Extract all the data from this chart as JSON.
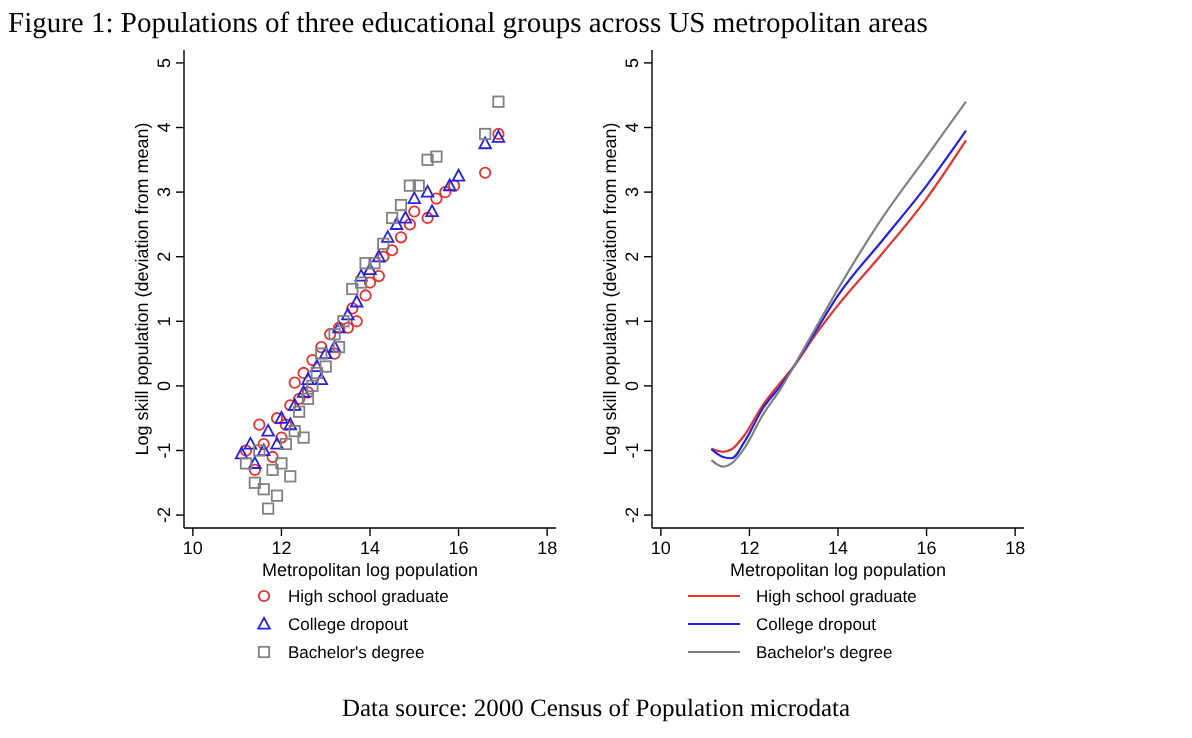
{
  "chart_data": [
    {
      "type": "scatter",
      "title": "Figure 1: Populations of three educational groups across US metropolitan areas",
      "xlabel": "Metropolitan log population",
      "ylabel": "Log skill population (deviation from mean)",
      "xlim": [
        9.8,
        18.2
      ],
      "xticks": [
        10,
        12,
        14,
        16,
        18
      ],
      "ylim": [
        -2.2,
        5.2
      ],
      "yticks": [
        -2,
        -1,
        0,
        1,
        2,
        3,
        4,
        5
      ],
      "legend": "bottom",
      "annotations": [
        "Data source: 2000 Census of Population microdata"
      ],
      "series": [
        {
          "name": "High school graduate",
          "color": "#e8302f",
          "marker": "circle",
          "x": [
            11.2,
            11.4,
            11.5,
            11.6,
            11.8,
            11.9,
            12.0,
            12.1,
            12.2,
            12.3,
            12.4,
            12.5,
            12.6,
            12.7,
            12.9,
            13.1,
            13.2,
            13.3,
            13.5,
            13.6,
            13.7,
            13.9,
            14.0,
            14.2,
            14.3,
            14.5,
            14.7,
            14.9,
            15.0,
            15.3,
            15.5,
            15.7,
            15.9,
            16.6,
            16.9
          ],
          "values": [
            -1.0,
            -1.3,
            -0.6,
            -0.9,
            -1.1,
            -0.5,
            -0.8,
            -0.6,
            -0.3,
            0.05,
            -0.2,
            0.2,
            -0.1,
            0.4,
            0.6,
            0.8,
            0.5,
            0.9,
            0.9,
            1.2,
            1.0,
            1.4,
            1.6,
            1.7,
            2.0,
            2.1,
            2.3,
            2.5,
            2.7,
            2.6,
            2.9,
            3.0,
            3.1,
            3.3,
            3.9
          ]
        },
        {
          "name": "College dropout",
          "color": "#2222e0",
          "marker": "triangle",
          "x": [
            11.1,
            11.3,
            11.4,
            11.6,
            11.7,
            11.9,
            12.0,
            12.2,
            12.3,
            12.5,
            12.6,
            12.8,
            12.9,
            13.0,
            13.2,
            13.3,
            13.5,
            13.7,
            13.8,
            14.0,
            14.2,
            14.4,
            14.6,
            14.8,
            15.0,
            15.3,
            15.4,
            15.8,
            16.0,
            16.6,
            16.9
          ],
          "values": [
            -1.05,
            -0.9,
            -1.2,
            -1.0,
            -0.7,
            -0.9,
            -0.5,
            -0.6,
            -0.3,
            -0.1,
            0.1,
            0.3,
            0.1,
            0.5,
            0.6,
            0.9,
            1.1,
            1.3,
            1.7,
            1.8,
            2.0,
            2.3,
            2.5,
            2.6,
            2.9,
            3.0,
            2.7,
            3.1,
            3.25,
            3.75,
            3.85
          ]
        },
        {
          "name": "Bachelor's degree",
          "color": "#808080",
          "marker": "square",
          "x": [
            11.2,
            11.4,
            11.5,
            11.6,
            11.7,
            11.8,
            11.9,
            12.0,
            12.1,
            12.2,
            12.3,
            12.4,
            12.5,
            12.6,
            12.7,
            12.8,
            12.9,
            13.0,
            13.2,
            13.3,
            13.4,
            13.6,
            13.8,
            13.9,
            14.1,
            14.3,
            14.5,
            14.7,
            14.9,
            15.1,
            15.3,
            15.5,
            16.6,
            16.9
          ],
          "values": [
            -1.2,
            -1.5,
            -1.0,
            -1.6,
            -1.9,
            -1.3,
            -1.7,
            -1.2,
            -0.9,
            -1.4,
            -0.7,
            -0.4,
            -0.8,
            -0.2,
            0.0,
            0.2,
            0.5,
            0.3,
            0.8,
            0.6,
            1.0,
            1.5,
            1.6,
            1.9,
            1.9,
            2.2,
            2.6,
            2.8,
            3.1,
            3.1,
            3.5,
            3.55,
            3.9,
            4.4
          ]
        }
      ]
    },
    {
      "type": "line",
      "xlabel": "Metropolitan log population",
      "ylabel": "Log skill population (deviation from mean)",
      "xlim": [
        9.8,
        18.2
      ],
      "xticks": [
        10,
        12,
        14,
        16,
        18
      ],
      "ylim": [
        -2.2,
        5.2
      ],
      "yticks": [
        -2,
        -1,
        0,
        1,
        2,
        3,
        4,
        5
      ],
      "legend": "bottom",
      "series": [
        {
          "name": "High school graduate",
          "color": "#e8302f",
          "x": [
            11.14,
            11.4,
            11.6,
            11.9,
            12.3,
            12.7,
            13.0,
            13.5,
            14.0,
            15.0,
            16.0,
            16.89
          ],
          "values": [
            -0.97,
            -1.02,
            -0.98,
            -0.75,
            -0.3,
            0.05,
            0.3,
            0.8,
            1.25,
            2.05,
            2.9,
            3.8
          ]
        },
        {
          "name": "College dropout",
          "color": "#2222e0",
          "x": [
            11.14,
            11.4,
            11.6,
            11.9,
            12.3,
            12.7,
            13.0,
            13.5,
            14.0,
            15.0,
            16.0,
            16.89
          ],
          "values": [
            -0.98,
            -1.1,
            -1.12,
            -0.85,
            -0.35,
            0.0,
            0.3,
            0.85,
            1.4,
            2.25,
            3.1,
            3.95
          ]
        },
        {
          "name": "Bachelor's degree",
          "color": "#808080",
          "x": [
            11.14,
            11.4,
            11.6,
            11.9,
            12.3,
            12.7,
            13.0,
            13.5,
            14.0,
            15.0,
            16.0,
            16.89
          ],
          "values": [
            -1.15,
            -1.25,
            -1.2,
            -0.95,
            -0.45,
            -0.05,
            0.3,
            0.9,
            1.5,
            2.6,
            3.55,
            4.4
          ]
        }
      ]
    }
  ]
}
